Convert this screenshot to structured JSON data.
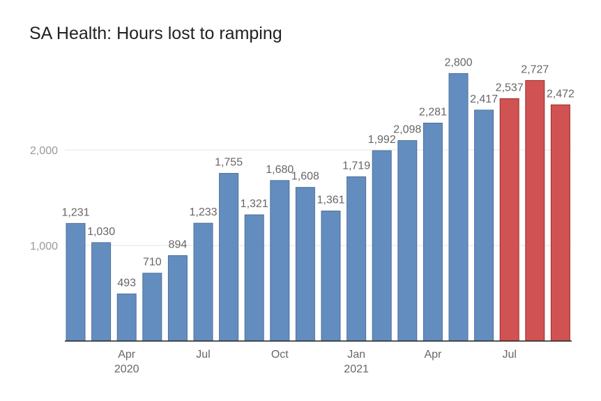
{
  "chart_data": {
    "type": "bar",
    "title": "SA Health: Hours lost to ramping",
    "xlabel": "",
    "ylabel": "",
    "ylim": [
      0,
      2950
    ],
    "yticks": [
      {
        "value": 1000,
        "label": "1,000"
      },
      {
        "value": 2000,
        "label": "2,000"
      }
    ],
    "grid": true,
    "colors": {
      "actual": "#648dbf",
      "actual_edge": "#4a6f99",
      "highlight": "#d15252",
      "highlight_edge": "#9e2a2a"
    },
    "values": [
      1231,
      1030,
      493,
      710,
      894,
      1233,
      1755,
      1321,
      1680,
      1608,
      1361,
      1719,
      1992,
      2098,
      2281,
      2800,
      2417,
      2537,
      2727,
      2472
    ],
    "data_labels": [
      "1,231",
      "1,030",
      "493",
      "710",
      "894",
      "1,233",
      "1,755",
      "1,321",
      "1,680",
      "1,608",
      "1,361",
      "1,719",
      "1,992",
      "2,098",
      "2,281",
      "2,800",
      "2,417",
      "2,537",
      "2,727",
      "2,472"
    ],
    "highlighted": [
      false,
      false,
      false,
      false,
      false,
      false,
      false,
      false,
      false,
      false,
      false,
      false,
      false,
      false,
      false,
      false,
      false,
      true,
      true,
      true
    ],
    "x_tick_labels": [
      {
        "index": 2,
        "lines": [
          "Apr",
          "2020"
        ]
      },
      {
        "index": 5,
        "lines": [
          "Jul"
        ]
      },
      {
        "index": 8,
        "lines": [
          "Oct"
        ]
      },
      {
        "index": 11,
        "lines": [
          "Jan",
          "2021"
        ]
      },
      {
        "index": 14,
        "lines": [
          "Apr"
        ]
      },
      {
        "index": 17,
        "lines": [
          "Jul"
        ]
      }
    ]
  }
}
